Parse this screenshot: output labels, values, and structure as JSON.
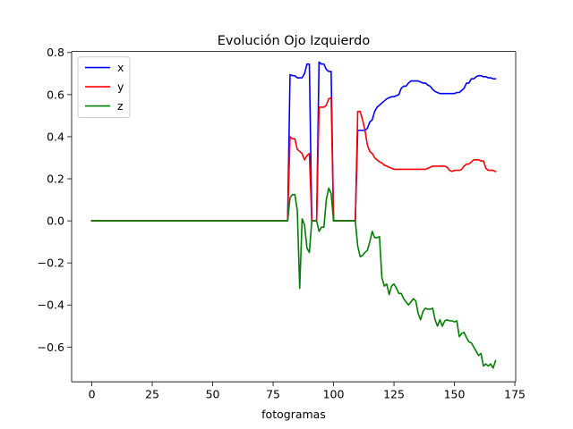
{
  "chart_data": {
    "type": "line",
    "title": "Evolución Ojo Izquierdo",
    "xlabel": "fotogramas",
    "ylabel": "",
    "xlim": [
      -8.35,
      175.35
    ],
    "ylim": [
      -0.765,
      0.805
    ],
    "xticks": [
      0,
      25,
      50,
      75,
      100,
      125,
      150,
      175
    ],
    "yticks": [
      -0.6,
      -0.4,
      -0.2,
      0.0,
      0.2,
      0.4,
      0.6,
      0.8
    ],
    "legend_position": "top-left",
    "grid": false,
    "series": [
      {
        "name": "x",
        "color": "#0000ff",
        "x": [
          0,
          81,
          82,
          83,
          84,
          85,
          86,
          87,
          88,
          89,
          90,
          91,
          92,
          93,
          94,
          95,
          96,
          97,
          98,
          99,
          100,
          109,
          110,
          111,
          112,
          113,
          114,
          115,
          116,
          117,
          118,
          119,
          120,
          121,
          122,
          123,
          124,
          125,
          126,
          127,
          128,
          129,
          130,
          131,
          132,
          133,
          134,
          135,
          136,
          137,
          138,
          139,
          140,
          141,
          142,
          143,
          144,
          145,
          146,
          147,
          148,
          149,
          150,
          151,
          152,
          153,
          154,
          155,
          156,
          157,
          158,
          159,
          160,
          161,
          162,
          163,
          164,
          165,
          166,
          167
        ],
        "y": [
          0.0,
          0.0,
          0.695,
          0.69,
          0.69,
          0.68,
          0.68,
          0.68,
          0.7,
          0.745,
          0.745,
          0.0,
          0.0,
          0.0,
          0.755,
          0.745,
          0.745,
          0.72,
          0.71,
          0.71,
          0.0,
          0.0,
          0.43,
          0.43,
          0.43,
          0.43,
          0.44,
          0.47,
          0.48,
          0.52,
          0.54,
          0.55,
          0.56,
          0.57,
          0.58,
          0.585,
          0.59,
          0.59,
          0.595,
          0.6,
          0.63,
          0.64,
          0.64,
          0.655,
          0.665,
          0.665,
          0.665,
          0.665,
          0.66,
          0.655,
          0.655,
          0.645,
          0.64,
          0.625,
          0.615,
          0.61,
          0.605,
          0.605,
          0.605,
          0.605,
          0.605,
          0.605,
          0.605,
          0.61,
          0.61,
          0.62,
          0.63,
          0.655,
          0.655,
          0.675,
          0.675,
          0.685,
          0.69,
          0.69,
          0.685,
          0.685,
          0.68,
          0.68,
          0.675,
          0.675
        ]
      },
      {
        "name": "y",
        "color": "#ff0000",
        "x": [
          0,
          81,
          82,
          83,
          84,
          85,
          86,
          87,
          88,
          89,
          90,
          91,
          92,
          93,
          94,
          95,
          96,
          97,
          98,
          99,
          100,
          109,
          110,
          111,
          112,
          113,
          114,
          115,
          116,
          117,
          118,
          119,
          120,
          121,
          122,
          123,
          124,
          125,
          126,
          127,
          128,
          129,
          130,
          131,
          132,
          133,
          134,
          135,
          136,
          137,
          138,
          139,
          140,
          141,
          142,
          143,
          144,
          145,
          146,
          147,
          148,
          149,
          150,
          151,
          152,
          153,
          154,
          155,
          156,
          157,
          158,
          159,
          160,
          161,
          162,
          163,
          164,
          165,
          166,
          167
        ],
        "y": [
          0.0,
          0.0,
          0.4,
          0.39,
          0.39,
          0.34,
          0.33,
          0.32,
          0.29,
          0.31,
          0.32,
          0.0,
          0.0,
          0.0,
          0.54,
          0.54,
          0.54,
          0.55,
          0.58,
          0.585,
          0.0,
          0.0,
          0.52,
          0.52,
          0.48,
          0.43,
          0.36,
          0.33,
          0.32,
          0.3,
          0.29,
          0.28,
          0.275,
          0.265,
          0.26,
          0.255,
          0.25,
          0.245,
          0.245,
          0.245,
          0.245,
          0.245,
          0.245,
          0.245,
          0.245,
          0.245,
          0.245,
          0.245,
          0.245,
          0.245,
          0.245,
          0.25,
          0.255,
          0.26,
          0.26,
          0.26,
          0.26,
          0.26,
          0.26,
          0.255,
          0.24,
          0.235,
          0.24,
          0.24,
          0.24,
          0.245,
          0.26,
          0.27,
          0.27,
          0.28,
          0.29,
          0.29,
          0.29,
          0.285,
          0.285,
          0.25,
          0.24,
          0.24,
          0.24,
          0.235
        ]
      },
      {
        "name": "z",
        "color": "#008000",
        "x": [
          0,
          81,
          82,
          83,
          84,
          85,
          86,
          87,
          88,
          89,
          90,
          91,
          92,
          93,
          94,
          95,
          96,
          97,
          98,
          99,
          100,
          109,
          110,
          111,
          112,
          113,
          114,
          115,
          116,
          117,
          118,
          119,
          120,
          121,
          122,
          123,
          124,
          125,
          126,
          127,
          128,
          129,
          130,
          131,
          132,
          133,
          134,
          135,
          136,
          137,
          138,
          139,
          140,
          141,
          142,
          143,
          144,
          145,
          146,
          147,
          148,
          149,
          150,
          151,
          152,
          153,
          154,
          155,
          156,
          157,
          158,
          159,
          160,
          161,
          162,
          163,
          164,
          165,
          166,
          167
        ],
        "y": [
          0.0,
          0.0,
          0.11,
          0.125,
          0.125,
          0.05,
          -0.32,
          0.01,
          -0.02,
          -0.13,
          -0.15,
          0.0,
          0.0,
          0.0,
          -0.05,
          -0.03,
          -0.03,
          0.1,
          0.155,
          0.13,
          0.0,
          0.0,
          -0.12,
          -0.17,
          -0.165,
          -0.15,
          -0.14,
          -0.1,
          -0.05,
          -0.08,
          -0.08,
          -0.075,
          -0.27,
          -0.31,
          -0.3,
          -0.35,
          -0.31,
          -0.3,
          -0.32,
          -0.345,
          -0.345,
          -0.37,
          -0.385,
          -0.4,
          -0.385,
          -0.37,
          -0.38,
          -0.44,
          -0.47,
          -0.43,
          -0.415,
          -0.42,
          -0.42,
          -0.415,
          -0.47,
          -0.5,
          -0.47,
          -0.5,
          -0.475,
          -0.47,
          -0.475,
          -0.475,
          -0.48,
          -0.475,
          -0.55,
          -0.535,
          -0.53,
          -0.555,
          -0.575,
          -0.58,
          -0.6,
          -0.62,
          -0.64,
          -0.63,
          -0.69,
          -0.68,
          -0.69,
          -0.68,
          -0.7,
          -0.665
        ]
      }
    ]
  }
}
